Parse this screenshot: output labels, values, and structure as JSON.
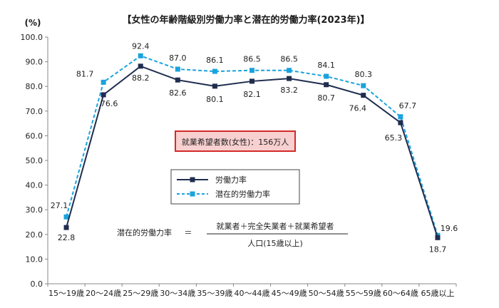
{
  "chart_data": {
    "type": "line",
    "title": "【女性の年齢階級別労働力率と潜在的労働力率(2023年)】",
    "ylabel_unit": "(%)",
    "ylim": [
      0,
      100
    ],
    "yticks": [
      "0.0",
      "10.0",
      "20.0",
      "30.0",
      "40.0",
      "50.0",
      "60.0",
      "70.0",
      "80.0",
      "90.0",
      "100.0"
    ],
    "grid": false,
    "legend_position": "center",
    "categories": [
      "15～19歳",
      "20～24歳",
      "25～29歳",
      "30～34歳",
      "35～39歳",
      "40～44歳",
      "45～49歳",
      "50～54歳",
      "55～59歳",
      "60～64歳",
      "65歳以上"
    ],
    "series": [
      {
        "name": "労働力率",
        "color": "#1f2d4f",
        "line_style": "solid",
        "marker": "square",
        "values": [
          22.8,
          76.6,
          88.2,
          82.6,
          80.1,
          82.1,
          83.2,
          80.7,
          76.4,
          65.3,
          18.7
        ],
        "labels": [
          "22.8",
          "76.6",
          "88.2",
          "82.6",
          "80.1",
          "82.1",
          "83.2",
          "80.7",
          "76.4",
          "65.3",
          "18.7"
        ]
      },
      {
        "name": "潜在的労働力率",
        "color": "#1aa3dd",
        "line_style": "dashed",
        "marker": "square",
        "values": [
          27.1,
          81.7,
          92.4,
          87.0,
          86.1,
          86.5,
          86.5,
          84.1,
          80.3,
          67.7,
          19.6
        ],
        "labels": [
          "27.1",
          "81.7",
          "92.4",
          "87.0",
          "86.1",
          "86.5",
          "86.5",
          "84.1",
          "80.3",
          "67.7",
          "19.6"
        ]
      }
    ],
    "annotations": {
      "callout": "就業希望者数(女性)：156万人",
      "formula_label": "潜在的労働力率",
      "formula_equals": "＝",
      "formula_numerator": "就業者＋完全失業者＋就業希望者",
      "formula_denominator": "人口(15歳以上)"
    }
  }
}
